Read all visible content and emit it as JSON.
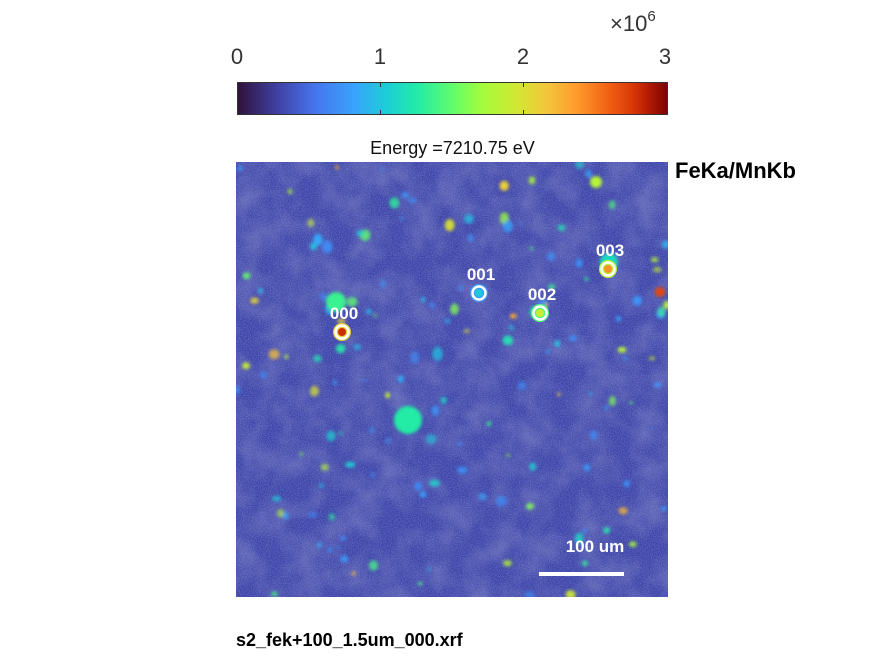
{
  "chart_data": {
    "type": "heatmap",
    "title": "Energy =7210.75 eV",
    "element_label": "FeKa/MnKb",
    "file_label": "s2_fek+100_1.5um_000.xrf",
    "colormap": "turbo",
    "colorbar": {
      "range": [
        0,
        3000000
      ],
      "ticks": [
        "0",
        "1",
        "2",
        "3"
      ],
      "multiplier_base": "×10",
      "multiplier_exponent": "6",
      "placement": "top"
    },
    "scale_bar": {
      "label": "100 um"
    },
    "markers": [
      {
        "label": "000",
        "value": 2800000
      },
      {
        "label": "001",
        "value": 1000000
      },
      {
        "label": "002",
        "value": 1900000
      },
      {
        "label": "003",
        "value": 2400000
      }
    ],
    "background_level": 300000
  },
  "colors": {
    "marker_ring": "#ffffff",
    "scale_bar": "#ffffff",
    "text": "#000000"
  }
}
